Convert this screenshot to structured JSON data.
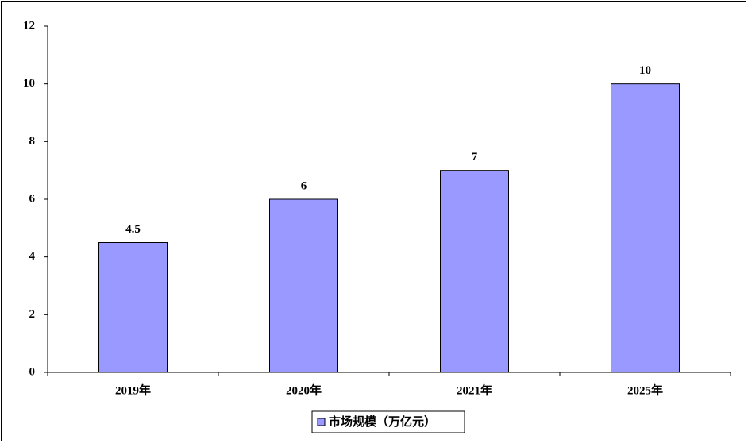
{
  "chart_data": {
    "type": "bar",
    "categories": [
      "2019年",
      "2020年",
      "2021年",
      "2025年"
    ],
    "series": [
      {
        "name": "市场规模（万亿元）",
        "color": "#9999ff",
        "values": [
          4.5,
          6,
          7,
          10
        ]
      }
    ],
    "ylim": [
      0,
      12
    ],
    "yticks": [
      0,
      2,
      4,
      6,
      8,
      10,
      12
    ],
    "grid": false,
    "legend": "bottom"
  }
}
